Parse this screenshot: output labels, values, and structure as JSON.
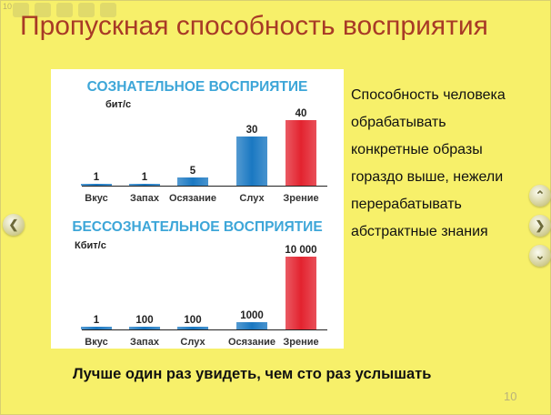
{
  "slide": {
    "title": "Пропускная способность восприятия",
    "corner_number": "10",
    "page_number": "10",
    "bottom_caption": "Лучше один раз увидеть, чем сто раз услышать",
    "right_text_lines": [
      "Способность человека",
      "обрабатывать",
      "конкретные образы",
      "гораздо выше, нежели",
      "перерабатывать",
      "абстрактные знания"
    ],
    "colors": {
      "background": "#f7f06a",
      "title": "#a83a26",
      "heading": "#3da6d8",
      "bar_blue": "#1a78c2",
      "bar_red": "#e3232f"
    },
    "nav": {
      "prev_icon": "chevron-left-icon",
      "up_icon": "chevron-up-icon",
      "next_icon": "chevron-right-icon",
      "down_icon": "chevron-down-icon"
    }
  },
  "chart_data": [
    {
      "type": "bar",
      "title": "СОЗНАТЕЛЬНОЕ ВОСПРИЯТИЕ",
      "ylabel": "бит/с",
      "categories": [
        "Вкус",
        "Запах",
        "Осязание",
        "Слух",
        "Зрение"
      ],
      "values": [
        1,
        1,
        5,
        30,
        40
      ],
      "value_labels": [
        "1",
        "1",
        "5",
        "30",
        "40"
      ],
      "bar_colors": [
        "#1a78c2",
        "#1a78c2",
        "#1a78c2",
        "#1a78c2",
        "#e3232f"
      ],
      "ylim": [
        0,
        40
      ],
      "grid": false
    },
    {
      "type": "bar",
      "title": "БЕССОЗНАТЕЛЬНОЕ ВОСПРИЯТИЕ",
      "ylabel": "Кбит/с",
      "categories": [
        "Вкус",
        "Запах",
        "Слух",
        "Осязание",
        "Зрение"
      ],
      "values": [
        1,
        100,
        100,
        1000,
        10000
      ],
      "value_labels": [
        "1",
        "100",
        "100",
        "1000",
        "10 000"
      ],
      "bar_colors": [
        "#1a78c2",
        "#1a78c2",
        "#1a78c2",
        "#1a78c2",
        "#e3232f"
      ],
      "ylim": [
        0,
        10000
      ],
      "grid": false
    }
  ]
}
